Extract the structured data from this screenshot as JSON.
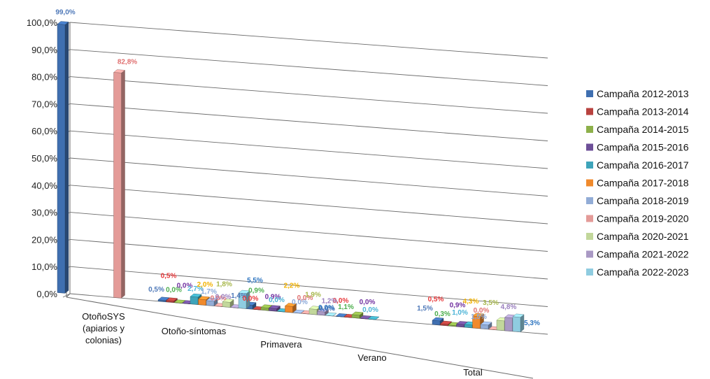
{
  "chart_data": {
    "type": "bar",
    "subtype": "3d-column",
    "title": "",
    "xlabel": "",
    "ylabel": "",
    "ylim": [
      0,
      100
    ],
    "y_ticks": [
      "0,0%",
      "10,0%",
      "20,0%",
      "30,0%",
      "40,0%",
      "50,0%",
      "60,0%",
      "70,0%",
      "80,0%",
      "90,0%",
      "100,0%"
    ],
    "grid": true,
    "legend_position": "right",
    "categories": [
      "OtoñoSYS (apiarios y colonias)",
      "Otoño-síntomas",
      "Primavera",
      "Verano",
      "Total"
    ],
    "category_lines": [
      [
        "OtoñoSYS",
        "(apiarios y",
        "colonias)"
      ],
      [
        "Otoño-síntomas"
      ],
      [
        "Primavera"
      ],
      [
        "Verano"
      ],
      [
        "Total"
      ]
    ],
    "series": [
      {
        "name": "Campaña 2012-2013",
        "color": "#3f6fb0",
        "values": [
          99.0,
          0.5,
          1.4,
          0.0,
          1.5
        ],
        "labels": [
          "99,0%",
          "0,5%",
          "1,4%",
          "0,0%",
          "1,5%"
        ]
      },
      {
        "name": "Campaña 2013-2014",
        "color": "#b8423f",
        "values": [
          null,
          0.5,
          0.0,
          0.0,
          0.5
        ],
        "labels": [
          "",
          "0,5%",
          "0,0%",
          "0,0%",
          "0,5%"
        ]
      },
      {
        "name": "Campaña 2014-2015",
        "color": "#8db04a",
        "values": [
          null,
          0.0,
          0.9,
          1.1,
          0.3
        ],
        "labels": [
          "",
          "0,0%",
          "0,9%",
          "1,1%",
          "0,3%"
        ]
      },
      {
        "name": "Campaña 2015-2016",
        "color": "#6d4f98",
        "values": [
          null,
          0.0,
          0.9,
          0.0,
          0.9
        ],
        "labels": [
          "",
          "0,0%",
          "0,9%",
          "0,0%",
          "0,9%"
        ]
      },
      {
        "name": "Campaña 2016-2017",
        "color": "#3ea4ba",
        "values": [
          null,
          2.7,
          0.0,
          0.0,
          1.0
        ],
        "labels": [
          "",
          "2,7%",
          "0,0%",
          "0,0%",
          "1,0%"
        ]
      },
      {
        "name": "Campaña 2017-2018",
        "color": "#f08a2c",
        "values": [
          null,
          2.0,
          2.2,
          null,
          4.3
        ],
        "labels": [
          "",
          "2,0%",
          "2,2%",
          "",
          "4,3%"
        ]
      },
      {
        "name": "Campaña 2018-2019",
        "color": "#92acd6",
        "values": [
          null,
          1.7,
          0.0,
          null,
          1.5
        ],
        "labels": [
          "",
          "1,7%",
          "0,0%",
          "",
          "1,5%"
        ]
      },
      {
        "name": "Campaña 2019-2020",
        "color": "#e49b98",
        "values": [
          82.8,
          0.0,
          0.0,
          null,
          0.0
        ],
        "labels": [
          "82,8%",
          "0,0%",
          "0,0%",
          "",
          "0,0%"
        ]
      },
      {
        "name": "Campaña 2020-2021",
        "color": "#c2d79b",
        "values": [
          null,
          1.8,
          1.9,
          null,
          3.5
        ],
        "labels": [
          "",
          "1,8%",
          "1,9%",
          "",
          "3,5%"
        ]
      },
      {
        "name": "Campaña 2021-2022",
        "color": "#a999c4",
        "values": [
          null,
          0.0,
          1.2,
          null,
          4.8
        ],
        "labels": [
          "",
          "0,0%",
          "1,2%",
          "",
          "4,8%"
        ]
      },
      {
        "name": "Campaña 2022-2023",
        "color": "#8fcce0",
        "values": [
          null,
          5.5,
          0.0,
          null,
          5.3
        ],
        "labels": [
          "",
          "5,5%",
          "0,0%",
          "",
          "5,3%"
        ]
      }
    ],
    "label_colors": [
      "#4e78b8",
      "#e8383a",
      "#4cae4c",
      "#7030a0",
      "#4bb3d6",
      "#f2b200",
      "#8aa8d8",
      "#e07070",
      "#a8b84c",
      "#9a7fbf",
      "#2e75c0"
    ]
  }
}
